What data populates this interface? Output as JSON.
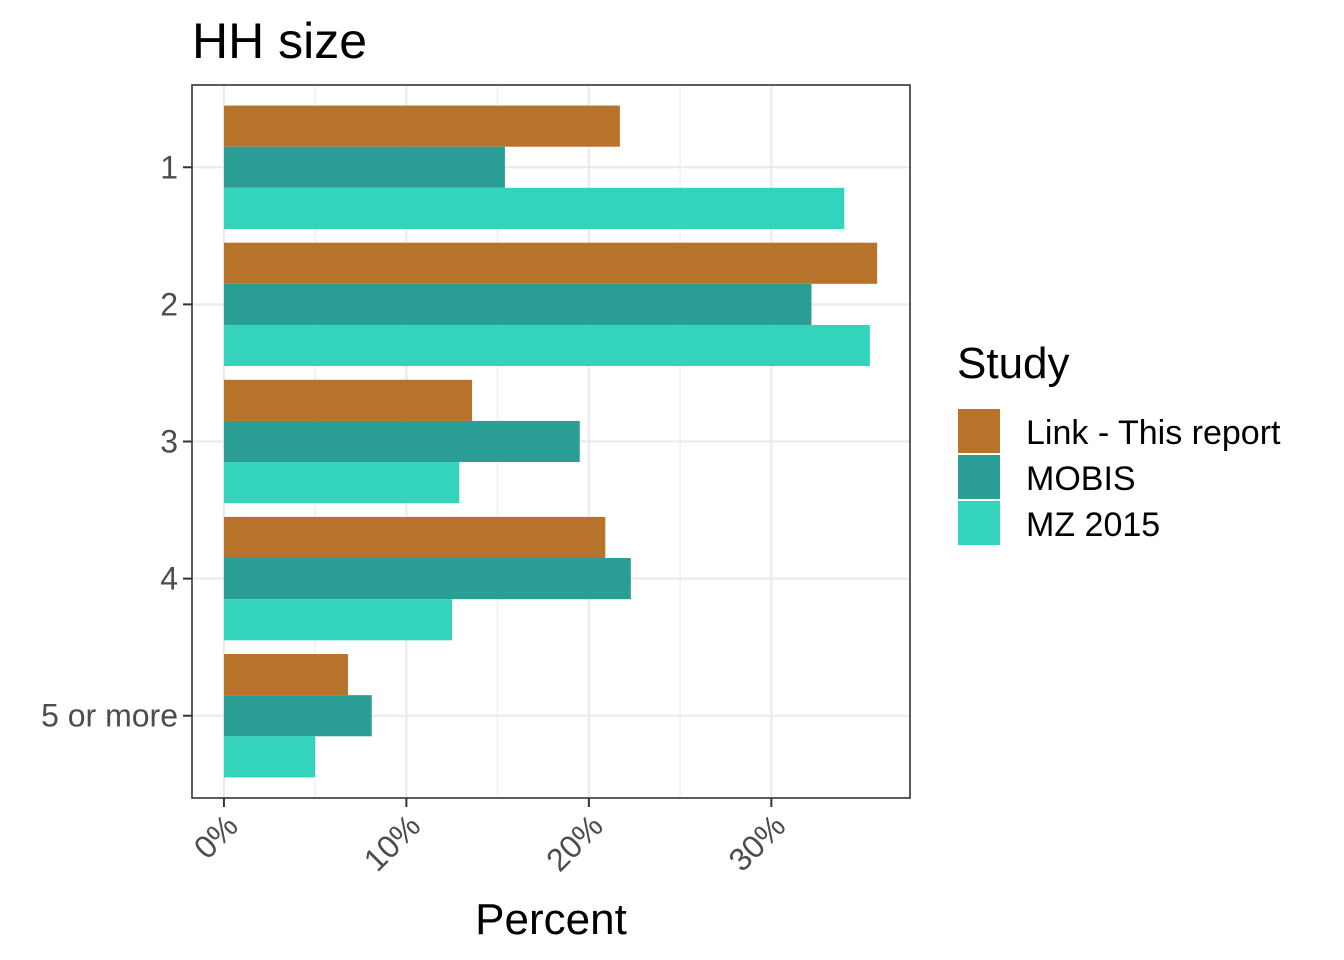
{
  "chart_data": {
    "type": "bar",
    "orientation": "horizontal",
    "title": "HH size",
    "xlabel": "Percent",
    "ylabel": "",
    "xlim": [
      -1.75,
      37.6
    ],
    "x_ticks": [
      0,
      10,
      20,
      30
    ],
    "x_tick_labels": [
      "0%",
      "10%",
      "20%",
      "30%"
    ],
    "categories": [
      "1",
      "2",
      "3",
      "4",
      "5 or more"
    ],
    "legend_title": "Study",
    "legend_position": "right",
    "grid": true,
    "series": [
      {
        "name": "Link - This report",
        "color": "#b8732a",
        "values": [
          21.7,
          35.8,
          13.6,
          20.9,
          6.8
        ]
      },
      {
        "name": "MOBIS",
        "color": "#2a9d94",
        "values": [
          15.4,
          32.2,
          19.5,
          22.3,
          8.1
        ]
      },
      {
        "name": "MZ 2015",
        "color": "#33d4bb",
        "values": [
          34.0,
          35.4,
          12.9,
          12.5,
          5.0
        ]
      }
    ]
  }
}
